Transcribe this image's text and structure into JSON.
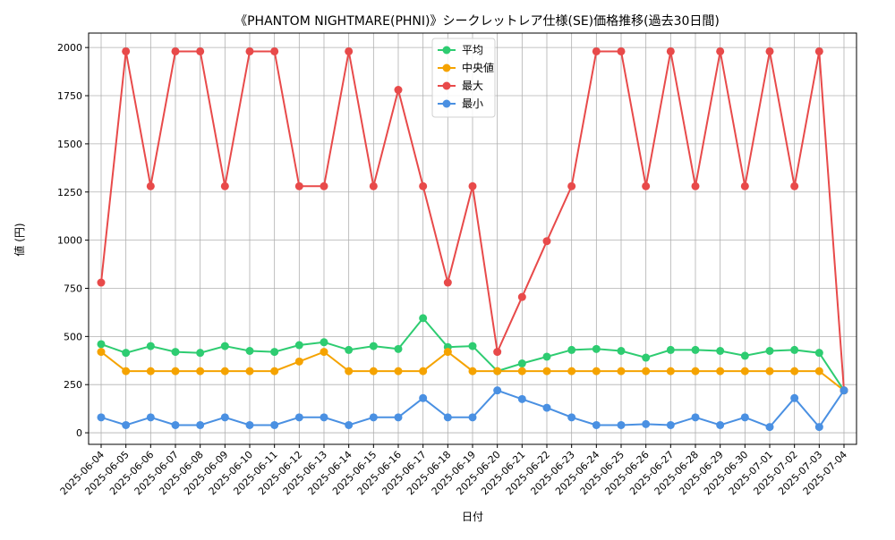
{
  "chart_data": {
    "type": "line",
    "title": "《PHANTOM NIGHTMARE(PHNI)》シークレットレア仕様(SE)価格推移(過去30日間)",
    "xlabel": "日付",
    "ylabel": "値 (円)",
    "ylim": [
      -60,
      2075
    ],
    "yticks": [
      0,
      250,
      500,
      750,
      1000,
      1250,
      1500,
      1750,
      2000
    ],
    "grid": true,
    "legend_position": "top-center",
    "categories": [
      "2025-06-04",
      "2025-06-05",
      "2025-06-06",
      "2025-06-07",
      "2025-06-08",
      "2025-06-09",
      "2025-06-10",
      "2025-06-11",
      "2025-06-12",
      "2025-06-13",
      "2025-06-14",
      "2025-06-15",
      "2025-06-16",
      "2025-06-17",
      "2025-06-18",
      "2025-06-19",
      "2025-06-20",
      "2025-06-21",
      "2025-06-22",
      "2025-06-23",
      "2025-06-24",
      "2025-06-25",
      "2025-06-26",
      "2025-06-27",
      "2025-06-28",
      "2025-06-29",
      "2025-06-30",
      "2025-07-01",
      "2025-07-02",
      "2025-07-03",
      "2025-07-04"
    ],
    "series": [
      {
        "name": "平均",
        "color": "#2ecc71",
        "values": [
          460,
          415,
          450,
          420,
          415,
          450,
          425,
          420,
          455,
          470,
          430,
          450,
          435,
          595,
          445,
          450,
          320,
          360,
          395,
          430,
          435,
          425,
          390,
          430,
          430,
          425,
          400,
          425,
          430,
          415,
          220
        ]
      },
      {
        "name": "中央値",
        "color": "#f5a300",
        "values": [
          420,
          320,
          320,
          320,
          320,
          320,
          320,
          320,
          370,
          420,
          320,
          320,
          320,
          320,
          420,
          320,
          320,
          320,
          320,
          320,
          320,
          320,
          320,
          320,
          320,
          320,
          320,
          320,
          320,
          320,
          220
        ]
      },
      {
        "name": "最大",
        "color": "#e84a4a",
        "values": [
          780,
          1980,
          1280,
          1980,
          1980,
          1280,
          1980,
          1980,
          1280,
          1280,
          1980,
          1280,
          1780,
          1280,
          780,
          1280,
          420,
          705,
          995,
          1280,
          1980,
          1980,
          1280,
          1980,
          1280,
          1980,
          1280,
          1980,
          1280,
          1980,
          220
        ]
      },
      {
        "name": "最小",
        "color": "#4a90e2",
        "values": [
          80,
          40,
          80,
          40,
          40,
          80,
          40,
          40,
          80,
          80,
          40,
          80,
          80,
          180,
          80,
          80,
          220,
          175,
          130,
          80,
          40,
          40,
          45,
          40,
          80,
          40,
          80,
          30,
          180,
          30,
          220
        ]
      }
    ]
  }
}
